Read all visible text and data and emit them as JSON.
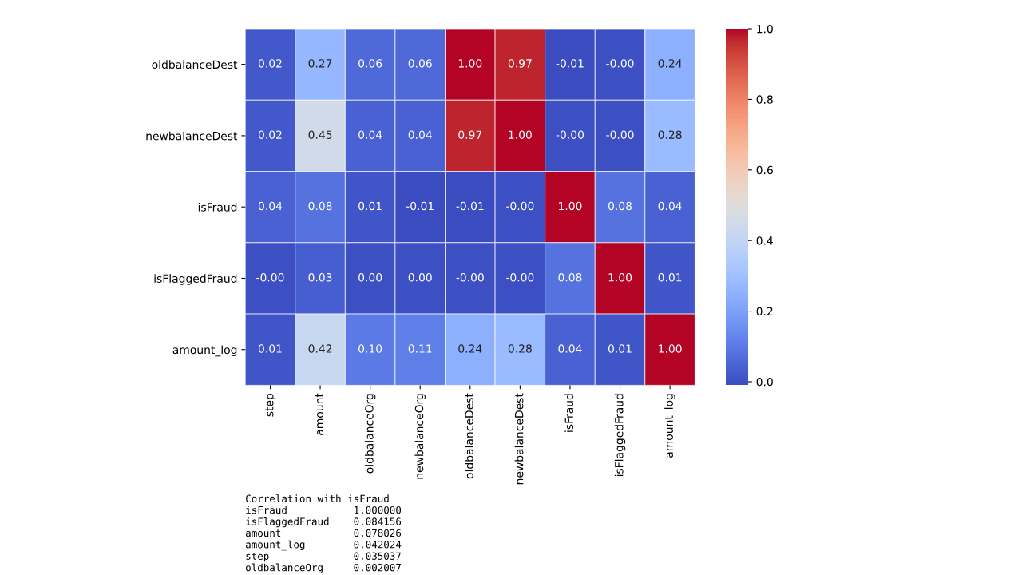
{
  "chart_data": {
    "type": "heatmap",
    "categories": [
      "step",
      "amount",
      "oldbalanceOrg",
      "newbalanceOrg",
      "oldbalanceDest",
      "newbalanceDest",
      "isFraud",
      "isFlaggedFraud",
      "amount_log"
    ],
    "y_categories": [
      "oldbalanceDest",
      "newbalanceDest",
      "isFraud",
      "isFlaggedFraud",
      "amount_log"
    ],
    "cells": [
      [
        0.02,
        0.27,
        0.06,
        0.06,
        1.0,
        0.97,
        -0.01,
        0.0,
        0.24
      ],
      [
        0.02,
        0.45,
        0.04,
        0.04,
        0.97,
        1.0,
        0.0,
        0.0,
        0.28
      ],
      [
        0.04,
        0.08,
        0.01,
        -0.01,
        -0.01,
        0.0,
        1.0,
        0.08,
        0.04
      ],
      [
        0.0,
        0.03,
        0.0,
        0.0,
        0.0,
        0.0,
        0.08,
        1.0,
        0.01
      ],
      [
        0.01,
        0.42,
        0.1,
        0.11,
        0.24,
        0.28,
        0.04,
        0.01,
        1.0
      ]
    ],
    "cell_labels": [
      [
        "0.02",
        "0.27",
        "0.06",
        "0.06",
        "1.00",
        "0.97",
        "-0.01",
        "-0.00",
        "0.24"
      ],
      [
        "0.02",
        "0.45",
        "0.04",
        "0.04",
        "0.97",
        "1.00",
        "-0.00",
        "-0.00",
        "0.28"
      ],
      [
        "0.04",
        "0.08",
        "0.01",
        "-0.01",
        "-0.01",
        "-0.00",
        "1.00",
        "0.08",
        "0.04"
      ],
      [
        "-0.00",
        "0.03",
        "0.00",
        "0.00",
        "-0.00",
        "-0.00",
        "0.08",
        "1.00",
        "0.01"
      ],
      [
        "0.01",
        "0.42",
        "0.10",
        "0.11",
        "0.24",
        "0.28",
        "0.04",
        "0.01",
        "1.00"
      ]
    ],
    "clim": [
      -0.01,
      1.0
    ],
    "cticks": [
      {
        "value": 0.0,
        "label": "0.0"
      },
      {
        "value": 0.2,
        "label": "0.2"
      },
      {
        "value": 0.4,
        "label": "0.4"
      },
      {
        "value": 0.6,
        "label": "0.6"
      },
      {
        "value": 0.8,
        "label": "0.8"
      },
      {
        "value": 1.0,
        "label": "1.0"
      }
    ],
    "annotations": [
      "Correlation with isFraud",
      "isFraud           1.000000",
      "isFlaggedFraud    0.084156",
      "amount            0.078026",
      "amount_log        0.042024",
      "step              0.035037",
      "oldbalanceOrg     0.002007"
    ]
  }
}
